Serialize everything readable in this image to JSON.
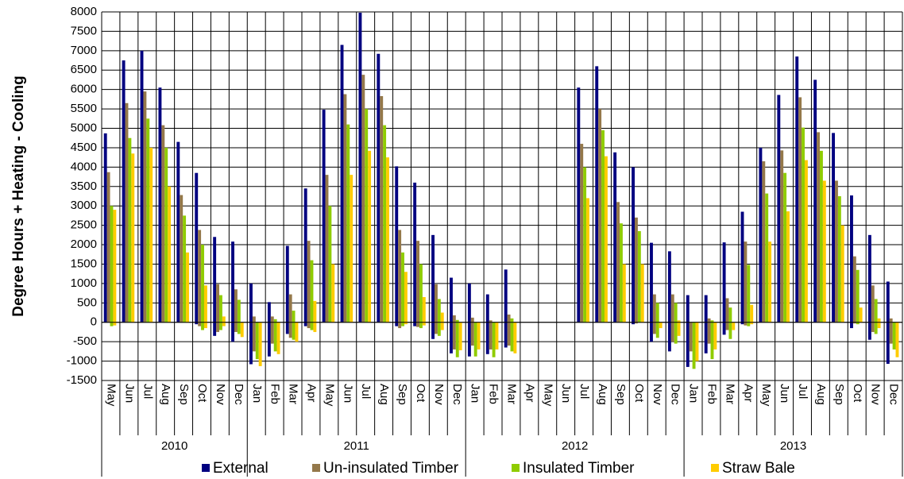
{
  "chart_data": {
    "type": "bar",
    "y_label": "Degree Hours + Heating - Cooling",
    "groups": [
      {
        "name": "2010",
        "categories": [
          "May",
          "Jun",
          "Jul",
          "Aug",
          "Sep",
          "Oct",
          "Nov",
          "Dec"
        ]
      },
      {
        "name": "2011",
        "categories": [
          "Jan",
          "Feb",
          "Mar",
          "Apr",
          "May",
          "Jun",
          "Jul",
          "Aug",
          "Sep",
          "Oct",
          "Nov",
          "Dec"
        ]
      },
      {
        "name": "2012",
        "categories": [
          "Jan",
          "Feb",
          "Mar",
          "Apr",
          "May",
          "Jun",
          "Jul",
          "Aug",
          "Sep",
          "Oct",
          "Nov",
          "Dec"
        ]
      },
      {
        "name": "2013",
        "categories": [
          "Jan",
          "Feb",
          "Mar",
          "Apr",
          "May",
          "Jun",
          "Jul",
          "Aug",
          "Sep",
          "Oct",
          "Nov",
          "Dec"
        ]
      }
    ],
    "series": [
      {
        "name": "External",
        "color": "#000080",
        "heating": [
          4870,
          6750,
          7000,
          6050,
          4650,
          3850,
          2200,
          2080,
          1000,
          520,
          1970,
          3450,
          5480,
          7150,
          7980,
          6920,
          4020,
          3600,
          2250,
          1150,
          1000,
          720,
          1360,
          null,
          null,
          null,
          6050,
          6600,
          4380,
          4000,
          2050,
          1830,
          700,
          700,
          2060,
          2850,
          4500,
          5860,
          6850,
          6250,
          4880,
          3270,
          2250,
          1050
        ],
        "cooling": [
          0,
          0,
          0,
          0,
          0,
          -50,
          -350,
          -500,
          -1080,
          -880,
          -300,
          -100,
          0,
          0,
          0,
          0,
          -100,
          -100,
          -430,
          -800,
          -880,
          -820,
          -650,
          null,
          null,
          null,
          0,
          0,
          0,
          -50,
          -500,
          -750,
          -1150,
          -800,
          -320,
          -50,
          0,
          0,
          0,
          0,
          0,
          -150,
          -450,
          -1070
        ]
      },
      {
        "name": "Un-insulated Timber",
        "color": "#94784a",
        "heating": [
          3870,
          5650,
          5950,
          5080,
          3280,
          2380,
          980,
          850,
          150,
          150,
          720,
          2100,
          3800,
          5880,
          6380,
          5830,
          2380,
          2100,
          980,
          180,
          120,
          50,
          200,
          null,
          null,
          null,
          4600,
          5500,
          3100,
          2700,
          720,
          720,
          0,
          100,
          620,
          2080,
          4150,
          4430,
          5800,
          4900,
          3650,
          1700,
          950,
          100
        ],
        "cooling": [
          0,
          0,
          0,
          0,
          0,
          -100,
          -250,
          -250,
          -750,
          -550,
          -400,
          -150,
          0,
          0,
          0,
          0,
          -150,
          -120,
          -300,
          -700,
          -600,
          -700,
          -600,
          null,
          null,
          null,
          0,
          0,
          0,
          -30,
          -300,
          -500,
          -750,
          -550,
          -200,
          -80,
          0,
          0,
          0,
          0,
          0,
          -30,
          -250,
          -550
        ]
      },
      {
        "name": "Insulated Timber",
        "color": "#8fcc00",
        "heating": [
          3000,
          4750,
          5250,
          4500,
          2750,
          2000,
          700,
          580,
          0,
          80,
          300,
          1600,
          3000,
          5100,
          5500,
          5080,
          1800,
          1500,
          600,
          60,
          0,
          0,
          100,
          null,
          null,
          null,
          4000,
          4950,
          2550,
          2350,
          500,
          500,
          0,
          50,
          380,
          1480,
          3320,
          3850,
          5020,
          4420,
          3250,
          1350,
          600,
          0
        ],
        "cooling": [
          -100,
          0,
          0,
          0,
          0,
          -200,
          -200,
          -300,
          -950,
          -750,
          -450,
          -200,
          0,
          0,
          0,
          0,
          -100,
          -150,
          -350,
          -900,
          -880,
          -900,
          -750,
          null,
          null,
          null,
          0,
          0,
          0,
          0,
          -400,
          -550,
          -1200,
          -950,
          -430,
          -100,
          0,
          0,
          0,
          0,
          0,
          -50,
          -300,
          -700
        ]
      },
      {
        "name": "Straw Bale",
        "color": "#ffcc00",
        "heating": [
          2900,
          4350,
          4500,
          3500,
          1800,
          950,
          150,
          0,
          0,
          0,
          0,
          550,
          1500,
          3800,
          4420,
          4250,
          1300,
          650,
          250,
          0,
          0,
          0,
          0,
          null,
          null,
          null,
          3200,
          4280,
          1500,
          1500,
          0,
          50,
          0,
          0,
          0,
          450,
          2080,
          2860,
          4180,
          3650,
          2500,
          380,
          100,
          0
        ],
        "cooling": [
          -80,
          0,
          0,
          0,
          0,
          -150,
          -100,
          -380,
          -1130,
          -820,
          -500,
          -250,
          0,
          0,
          0,
          0,
          -50,
          -80,
          -200,
          -720,
          -700,
          -700,
          -800,
          null,
          null,
          null,
          0,
          0,
          0,
          0,
          -150,
          -350,
          -1000,
          -700,
          -200,
          -50,
          0,
          0,
          0,
          0,
          0,
          0,
          -150,
          -900
        ]
      }
    ],
    "ylim": [
      -1500,
      8000
    ],
    "yticks": [
      -1500,
      -1000,
      -500,
      0,
      500,
      1000,
      1500,
      2000,
      2500,
      3000,
      3500,
      4000,
      4500,
      5000,
      5500,
      6000,
      6500,
      7000,
      7500,
      8000
    ],
    "grid": true
  }
}
